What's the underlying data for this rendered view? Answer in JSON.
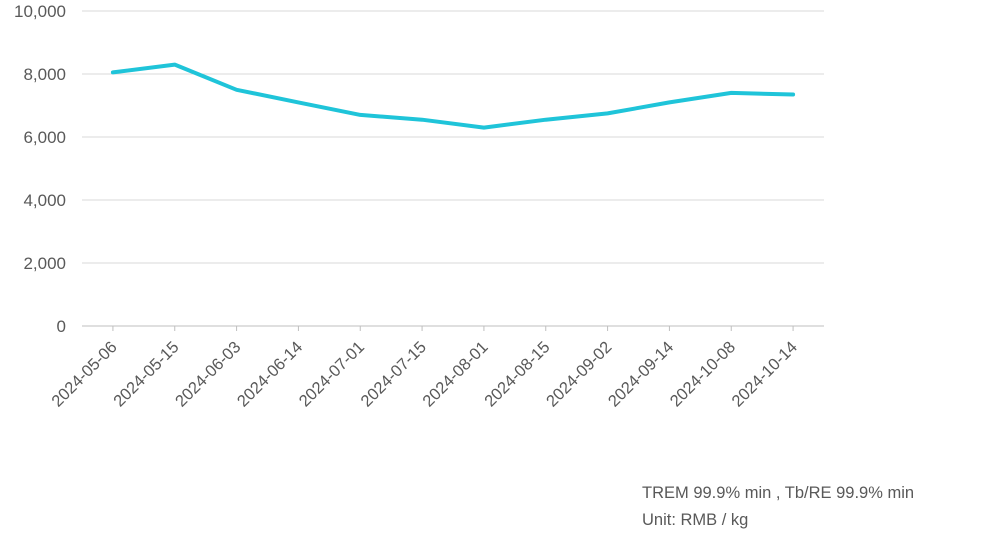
{
  "notes": {
    "line1": "TREM 99.9% min , Tb/RE 99.9% min",
    "line2": "Unit: RMB / kg"
  },
  "colors": {
    "line": "#1fc4d9",
    "grid": "#d9d9d9",
    "text": "#595959"
  },
  "chart_data": {
    "type": "line",
    "title": "",
    "xlabel": "",
    "ylabel": "",
    "x": [
      "2024-05-06",
      "2024-05-15",
      "2024-06-03",
      "2024-06-14",
      "2024-07-01",
      "2024-07-15",
      "2024-08-01",
      "2024-08-15",
      "2024-09-02",
      "2024-09-14",
      "2024-10-08",
      "2024-10-14"
    ],
    "series": [
      {
        "values": [
          8050,
          8300,
          7500,
          7100,
          6700,
          6550,
          6300,
          6550,
          6750,
          7100,
          7400,
          7350
        ]
      }
    ],
    "ylim": [
      0,
      10000
    ],
    "yticks": [
      0,
      2000,
      4000,
      6000,
      8000,
      10000
    ],
    "ytick_labels": [
      "0",
      "2,000",
      "4,000",
      "6,000",
      "8,000",
      "10,000"
    ],
    "grid": true,
    "legend": "none"
  }
}
